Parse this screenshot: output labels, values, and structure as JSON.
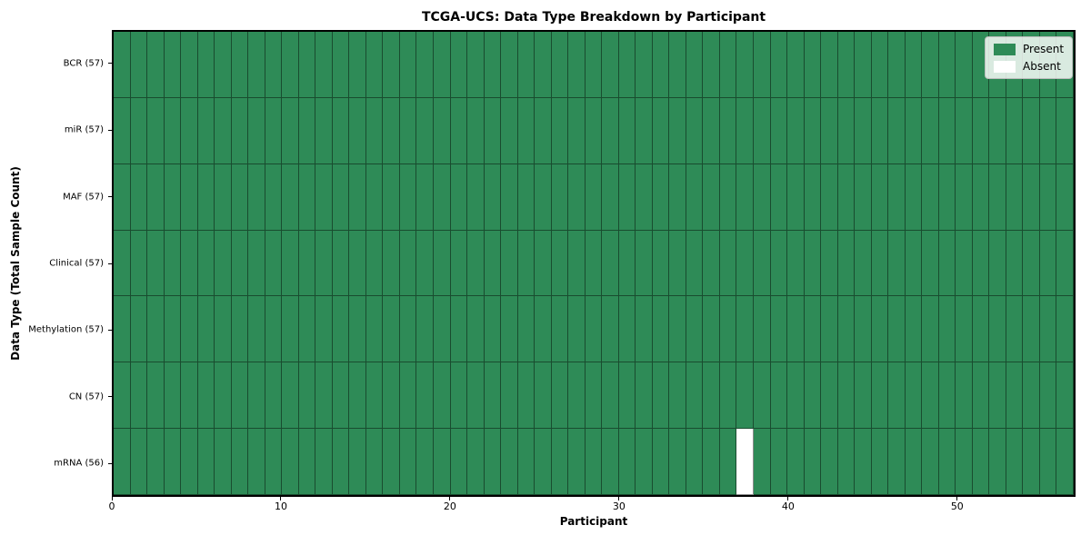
{
  "chart_data": {
    "type": "heatmap",
    "title": "TCGA-UCS: Data Type Breakdown by Participant",
    "xlabel": "Participant",
    "ylabel": "Data Type (Total Sample Count)",
    "n_participants": 57,
    "x_range": [
      0,
      57
    ],
    "x_ticks": [
      0,
      10,
      20,
      30,
      40,
      50
    ],
    "rows": [
      {
        "data_type": "BCR",
        "label": "BCR (57)",
        "present_count": 57,
        "absent_participants": []
      },
      {
        "data_type": "miR",
        "label": "miR (57)",
        "present_count": 57,
        "absent_participants": []
      },
      {
        "data_type": "MAF",
        "label": "MAF (57)",
        "present_count": 57,
        "absent_participants": []
      },
      {
        "data_type": "Clinical",
        "label": "Clinical (57)",
        "present_count": 57,
        "absent_participants": []
      },
      {
        "data_type": "Methylation",
        "label": "Methylation (57)",
        "present_count": 57,
        "absent_participants": []
      },
      {
        "data_type": "CN",
        "label": "CN (57)",
        "present_count": 57,
        "absent_participants": []
      },
      {
        "data_type": "mRNA",
        "label": "mRNA (56)",
        "present_count": 56,
        "absent_participants": [
          37
        ]
      }
    ],
    "legend": {
      "position": "upper right",
      "entries": [
        {
          "label": "Present",
          "color": "#2e8b57"
        },
        {
          "label": "Absent",
          "color": "#ffffff"
        }
      ]
    },
    "colors": {
      "present": "#2e8b57",
      "absent": "#ffffff",
      "cell_edge": "#1d4f33",
      "axes_edge": "#000000"
    },
    "grid": "cell-borders"
  }
}
